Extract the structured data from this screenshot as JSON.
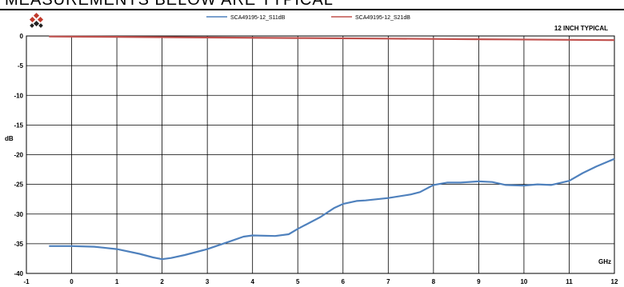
{
  "header": {
    "title": "MEASUREMENTS BELOW ARE TYPICAL"
  },
  "chart_data": {
    "type": "line",
    "annotation": "12 INCH TYPICAL",
    "xlabel": "GHz",
    "ylabel": "dB",
    "xlim": [
      -1,
      12
    ],
    "ylim": [
      -40,
      0
    ],
    "xticks": [
      -1,
      0,
      1,
      2,
      3,
      4,
      5,
      6,
      7,
      8,
      9,
      10,
      11,
      12
    ],
    "yticks": [
      0,
      -5,
      -10,
      -15,
      -20,
      -25,
      -30,
      -35,
      -40
    ],
    "grid": true,
    "legend_position": "top-center",
    "series": [
      {
        "name": "SCA49195-12_S11dB",
        "color": "#4f81bd",
        "x": [
          -0.5,
          0,
          0.5,
          1.0,
          1.5,
          1.8,
          2.0,
          2.2,
          2.5,
          3.0,
          3.5,
          3.8,
          4.0,
          4.5,
          4.8,
          5.0,
          5.5,
          5.8,
          6.0,
          6.3,
          6.5,
          7.0,
          7.5,
          7.7,
          8.0,
          8.3,
          8.6,
          9.0,
          9.3,
          9.6,
          10.0,
          10.3,
          10.6,
          11.0,
          11.3,
          11.6,
          12.0
        ],
        "y": [
          -35.4,
          -35.4,
          -35.5,
          -35.9,
          -36.7,
          -37.3,
          -37.6,
          -37.4,
          -36.9,
          -35.9,
          -34.6,
          -33.8,
          -33.6,
          -33.7,
          -33.4,
          -32.5,
          -30.5,
          -29.0,
          -28.3,
          -27.8,
          -27.7,
          -27.3,
          -26.7,
          -26.3,
          -25.1,
          -24.7,
          -24.7,
          -24.5,
          -24.6,
          -25.1,
          -25.2,
          -25.0,
          -25.1,
          -24.4,
          -23.1,
          -22.0,
          -20.7
        ]
      },
      {
        "name": "SCA49195-12_S21dB",
        "color": "#c0504d",
        "x": [
          -0.5,
          1,
          3,
          5,
          7,
          9,
          11,
          12
        ],
        "y": [
          -0.1,
          -0.15,
          -0.25,
          -0.35,
          -0.45,
          -0.55,
          -0.65,
          -0.7
        ]
      }
    ]
  }
}
